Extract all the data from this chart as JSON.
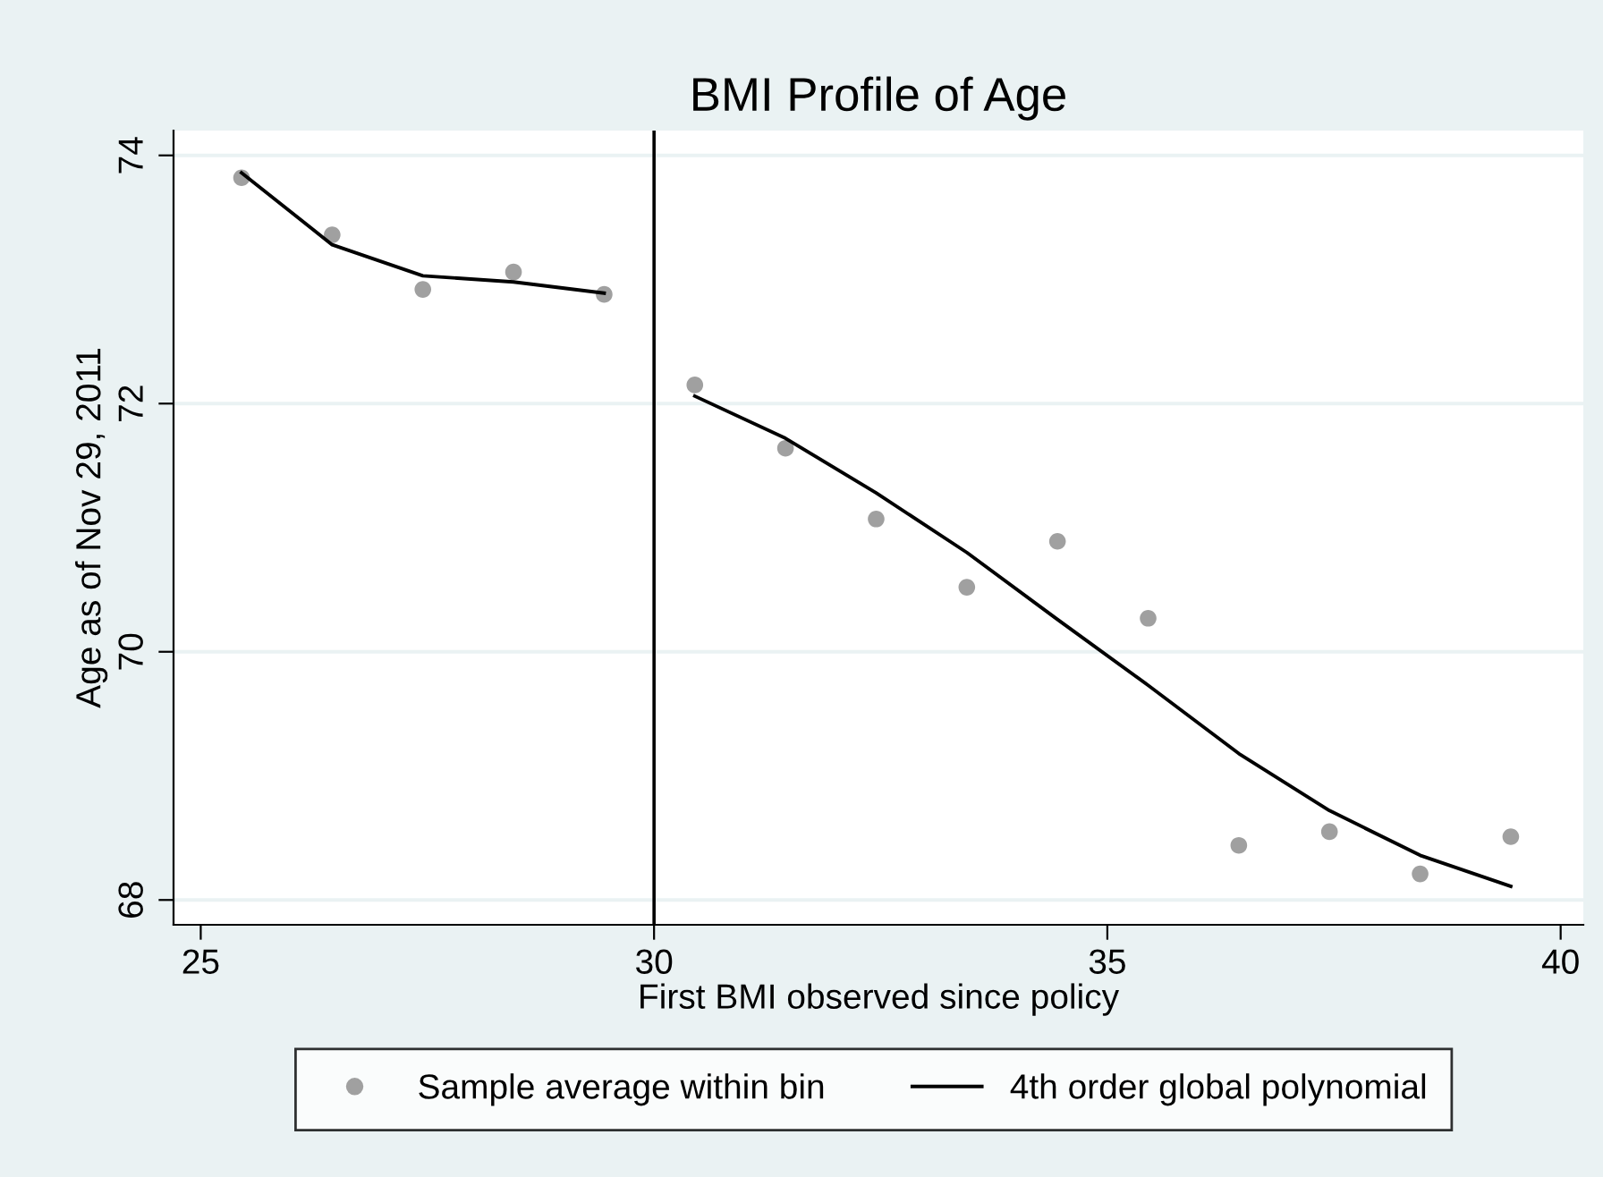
{
  "chart_data": {
    "type": "scatter",
    "title": "BMI Profile of Age",
    "xlabel": "First BMI observed since policy",
    "ylabel": "Age as of Nov 29, 2011",
    "series": [
      {
        "name": "Sample average within bin",
        "color": "#a0a0a0",
        "marker": "circle",
        "x": [
          25.45,
          26.45,
          27.45,
          28.45,
          29.45,
          30.45,
          31.45,
          32.45,
          33.45,
          34.45,
          35.45,
          36.45,
          37.45,
          38.45,
          39.45
        ],
        "values": [
          73.82,
          73.36,
          72.92,
          73.06,
          72.88,
          72.15,
          71.64,
          71.07,
          70.52,
          70.89,
          70.27,
          68.44,
          68.55,
          68.21,
          68.51
        ]
      },
      {
        "name": "4th order global polynomial",
        "type": "line",
        "color": "#000000",
        "marker": "none",
        "line_style": "solid",
        "x": [
          25.45,
          26.45,
          27.45,
          28.45,
          29.45,
          29.95,
          30.45,
          31.45,
          32.45,
          33.45,
          34.45,
          35.45,
          36.45,
          37.45,
          38.45,
          39.45
        ],
        "values": [
          73.86,
          73.28,
          73.03,
          72.98,
          72.89,
          null,
          72.06,
          71.72,
          71.28,
          70.8,
          70.26,
          69.73,
          69.18,
          68.72,
          68.36,
          68.11
        ]
      }
    ],
    "xlim": [
      24.7,
      40.25
    ],
    "xticks": [
      25,
      30,
      35,
      40
    ],
    "ylim": [
      67.8,
      74.2
    ],
    "yticks": [
      68,
      70,
      72,
      74
    ],
    "ref_lines": [
      {
        "axis": "x",
        "value": 30,
        "color": "#000000"
      }
    ],
    "grid": "y",
    "legend": "bottom"
  }
}
